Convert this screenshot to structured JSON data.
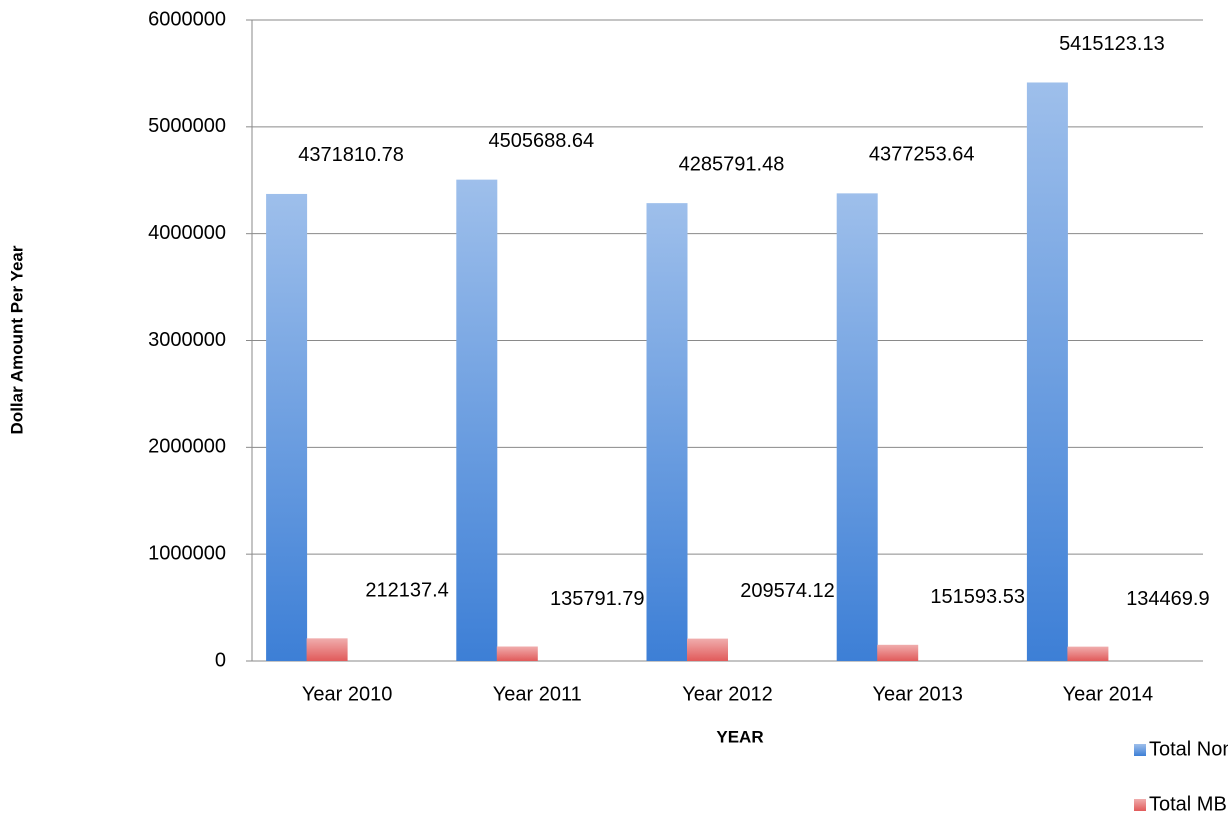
{
  "chart_data": {
    "type": "bar",
    "categories": [
      "Year 2010",
      "Year 2011",
      "Year 2012",
      "Year 2013",
      "Year 2014"
    ],
    "series": [
      {
        "name": "Total Non-Construction",
        "color": "#3d7fd6",
        "values": [
          4371810.78,
          4505688.64,
          4285791.48,
          4377253.64,
          5415123.13
        ]
      },
      {
        "name": "Total MBE",
        "color": "#e15a5a",
        "values": [
          212137.4,
          135791.79,
          209574.12,
          151593.53,
          134469.9
        ]
      }
    ],
    "ylim": [
      0,
      6000000
    ],
    "yticks": [
      0,
      1000000,
      2000000,
      3000000,
      4000000,
      5000000,
      6000000
    ],
    "xlabel": "YEAR",
    "ylabel": "Dollar Amount Per Year",
    "grid": true,
    "legend": "bottom-right"
  }
}
